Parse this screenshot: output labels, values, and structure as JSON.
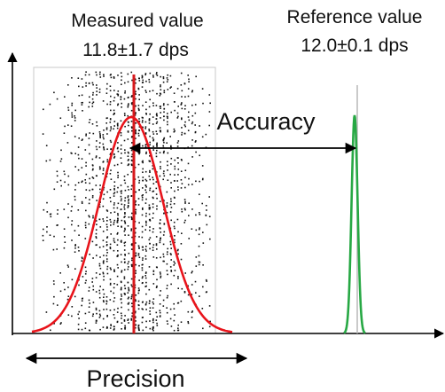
{
  "measured": {
    "title": "Measured value",
    "value_text": "11.8±1.7 dps",
    "mean": 11.8,
    "sd": 1.7,
    "unit": "dps",
    "curve_color": "#e8141b",
    "mean_line_color": "#d7191c"
  },
  "reference": {
    "title": "Reference value",
    "value_text": "12.0±0.1 dps",
    "mean": 12.0,
    "sd": 0.1,
    "unit": "dps",
    "curve_color": "#27a844"
  },
  "annotations": {
    "accuracy_label": "Accuracy",
    "precision_label": "Precision"
  }
}
